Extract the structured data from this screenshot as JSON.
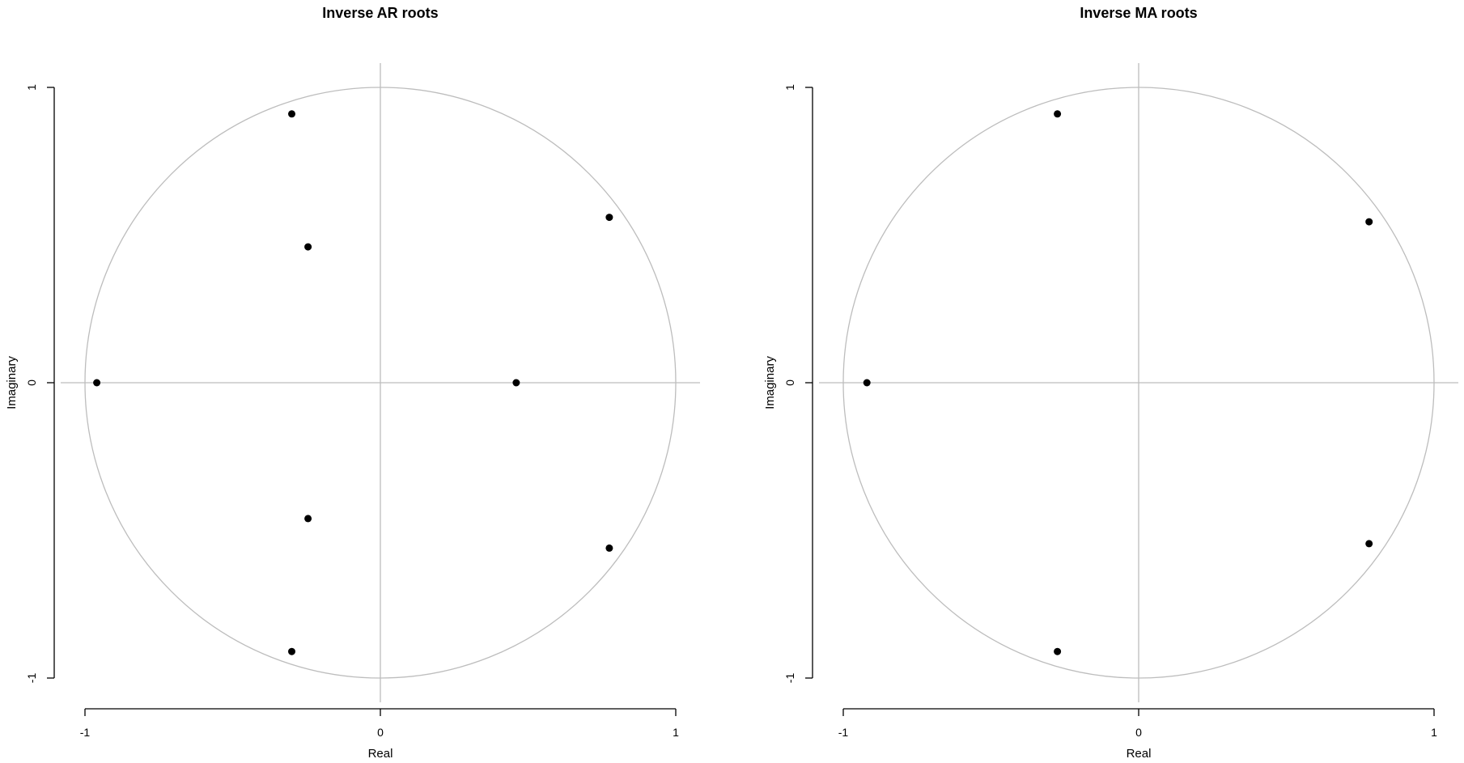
{
  "chart_data": [
    {
      "type": "scatter",
      "title": "Inverse AR roots",
      "xlabel": "Real",
      "ylabel": "Imaginary",
      "xlim": [
        -1,
        1
      ],
      "ylim": [
        -1,
        1
      ],
      "x_ticks": [
        "-1",
        "0",
        "1"
      ],
      "y_ticks": [
        "-1",
        "0",
        "1"
      ],
      "unit_circle": true,
      "reference_lines": [
        0
      ],
      "points": [
        {
          "re": -0.3,
          "im": 0.91
        },
        {
          "re": -0.245,
          "im": 0.46
        },
        {
          "re": 0.775,
          "im": 0.56
        },
        {
          "re": -0.96,
          "im": 0.0
        },
        {
          "re": 0.46,
          "im": 0.0
        },
        {
          "re": -0.245,
          "im": -0.46
        },
        {
          "re": 0.775,
          "im": -0.56
        },
        {
          "re": -0.3,
          "im": -0.91
        }
      ],
      "point_color": "#000000",
      "reference_color": "#bdbdbd"
    },
    {
      "type": "scatter",
      "title": "Inverse MA roots",
      "xlabel": "Real",
      "ylabel": "Imaginary",
      "xlim": [
        -1,
        1
      ],
      "ylim": [
        -1,
        1
      ],
      "x_ticks": [
        "-1",
        "0",
        "1"
      ],
      "y_ticks": [
        "-1",
        "0",
        "1"
      ],
      "unit_circle": true,
      "reference_lines": [
        0
      ],
      "points": [
        {
          "re": -0.275,
          "im": 0.91
        },
        {
          "re": 0.78,
          "im": 0.545
        },
        {
          "re": -0.92,
          "im": 0.0
        },
        {
          "re": 0.78,
          "im": -0.545
        },
        {
          "re": -0.275,
          "im": -0.91
        }
      ],
      "point_color": "#000000",
      "reference_color": "#bdbdbd"
    }
  ]
}
